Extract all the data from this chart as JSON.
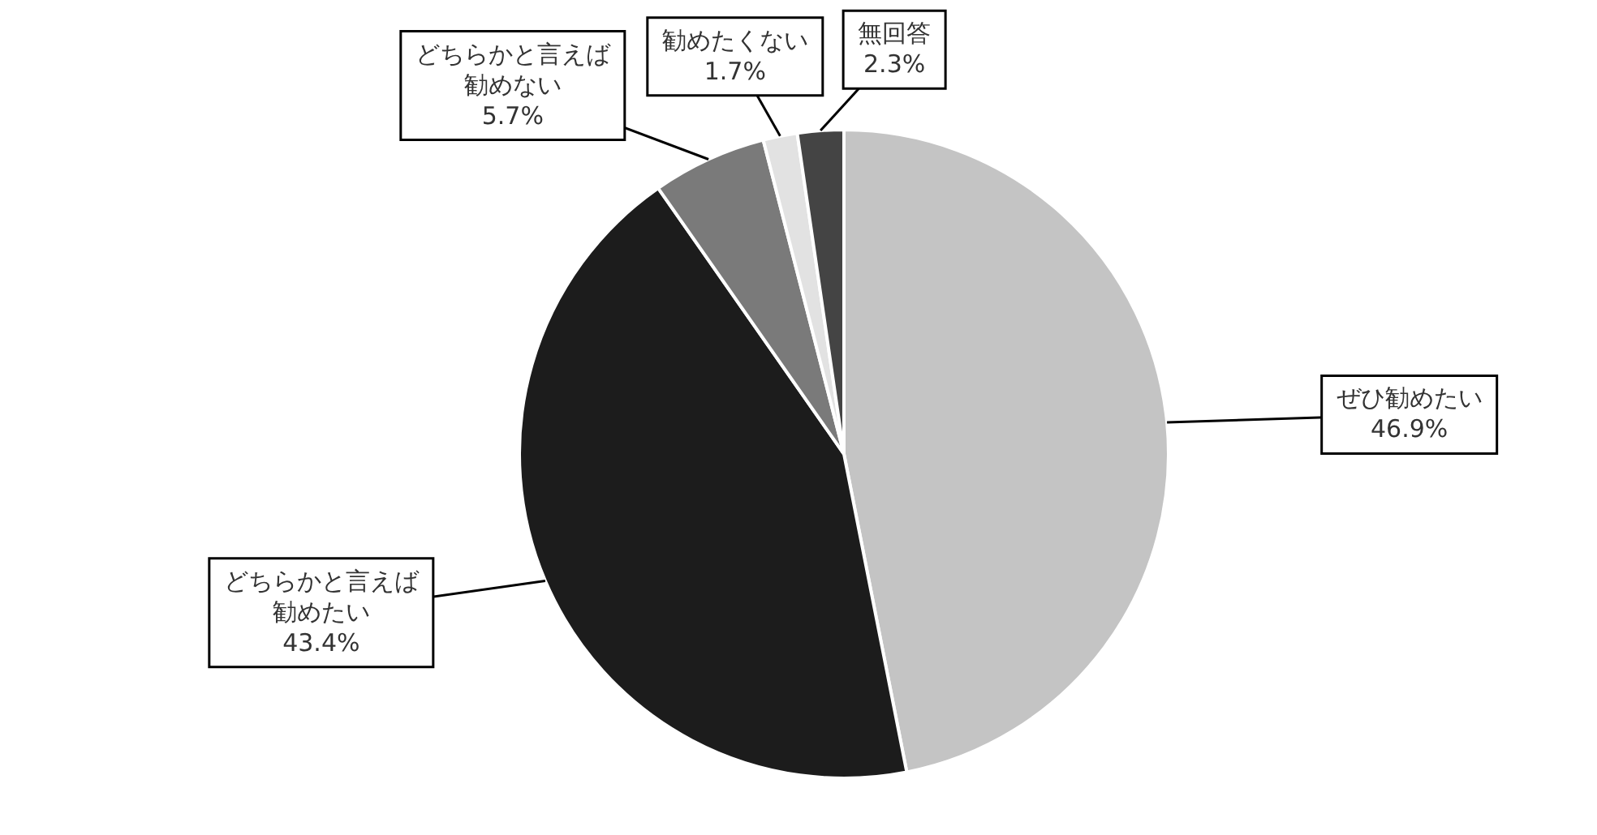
{
  "chart_data": {
    "type": "pie",
    "categories": [
      "ぜひ勧めたい",
      "どちらかと言えば勧めたい",
      "どちらかと言えば勧めない",
      "勧めたくない",
      "無回答"
    ],
    "values": [
      46.9,
      43.4,
      5.7,
      1.7,
      2.3
    ],
    "value_labels": [
      "46.9%",
      "43.4%",
      "5.7%",
      "1.7%",
      "2.3%"
    ],
    "colors": [
      "#c4c4c4",
      "#1c1c1c",
      "#7a7a7a",
      "#e2e2e2",
      "#444444"
    ]
  }
}
